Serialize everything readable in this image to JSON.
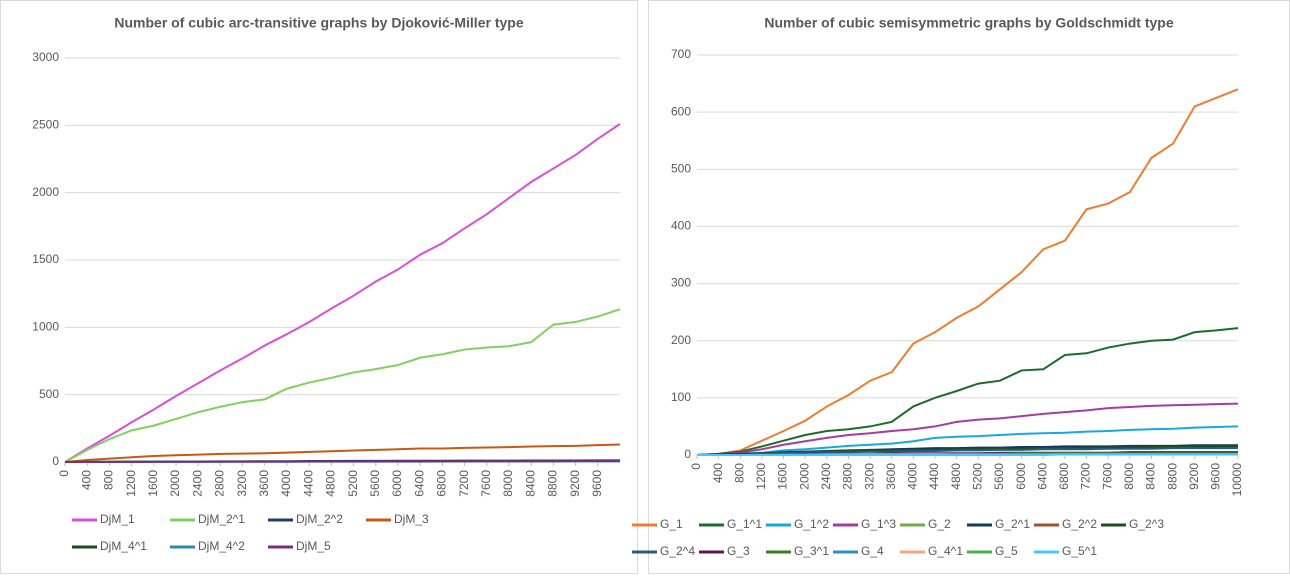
{
  "chart_data": [
    {
      "type": "line",
      "title": "Number of cubic arc-transitive graphs by Djoković-Miller type",
      "x": [
        0,
        400,
        800,
        1200,
        1600,
        2000,
        2400,
        2800,
        3200,
        3600,
        4000,
        4400,
        4800,
        5200,
        5600,
        6000,
        6400,
        6800,
        7200,
        7600,
        8000,
        8400,
        8800,
        9200,
        9600,
        10000
      ],
      "xlim": [
        0,
        10000
      ],
      "xticks": [
        0,
        400,
        800,
        1200,
        1600,
        2000,
        2400,
        2800,
        3200,
        3600,
        4000,
        4400,
        4800,
        5200,
        5600,
        6000,
        6400,
        6800,
        7200,
        7600,
        8000,
        8400,
        8800,
        9200,
        9600
      ],
      "ylim": [
        0,
        3000
      ],
      "yticks": [
        0,
        500,
        1000,
        1500,
        2000,
        2500,
        3000
      ],
      "grid": true,
      "legend": "bottom",
      "series": [
        {
          "name": "DjM_1",
          "color": "#d94fd6",
          "values": [
            0,
            100,
            195,
            295,
            390,
            490,
            585,
            680,
            770,
            865,
            950,
            1040,
            1140,
            1235,
            1340,
            1430,
            1540,
            1625,
            1735,
            1840,
            1960,
            2080,
            2180,
            2280,
            2400,
            2510
          ]
        },
        {
          "name": "DjM_2^1",
          "color": "#7fd15e",
          "values": [
            0,
            90,
            170,
            235,
            270,
            320,
            370,
            410,
            445,
            465,
            545,
            590,
            625,
            665,
            690,
            720,
            775,
            800,
            835,
            850,
            860,
            890,
            1020,
            1040,
            1080,
            1135
          ]
        },
        {
          "name": "DjM_2^2",
          "color": "#1f3d63",
          "values": [
            0,
            1,
            2,
            3,
            3,
            4,
            4,
            5,
            5,
            6,
            6,
            7,
            7,
            8,
            8,
            9,
            9,
            9,
            10,
            10,
            10,
            11,
            11,
            11,
            12,
            12
          ]
        },
        {
          "name": "DjM_3",
          "color": "#c55a11",
          "values": [
            0,
            15,
            25,
            35,
            45,
            50,
            55,
            60,
            62,
            65,
            70,
            75,
            80,
            85,
            90,
            95,
            100,
            100,
            105,
            108,
            110,
            115,
            118,
            120,
            125,
            130
          ]
        },
        {
          "name": "DjM_4^1",
          "color": "#1d4a1d",
          "values": [
            0,
            1,
            1,
            2,
            2,
            3,
            3,
            3,
            4,
            4,
            4,
            5,
            5,
            5,
            5,
            6,
            6,
            6,
            6,
            7,
            7,
            7,
            7,
            8,
            8,
            8
          ]
        },
        {
          "name": "DjM_4^2",
          "color": "#2e8bb0",
          "values": [
            0,
            0,
            1,
            1,
            1,
            1,
            2,
            2,
            2,
            2,
            2,
            3,
            3,
            3,
            3,
            3,
            3,
            4,
            4,
            4,
            4,
            4,
            4,
            5,
            5,
            5
          ]
        },
        {
          "name": "DjM_5",
          "color": "#7b2c81",
          "values": [
            0,
            1,
            1,
            1,
            2,
            2,
            2,
            3,
            3,
            3,
            3,
            4,
            4,
            4,
            4,
            5,
            5,
            5,
            5,
            6,
            6,
            6,
            6,
            7,
            7,
            7
          ]
        }
      ]
    },
    {
      "type": "line",
      "title": "Number of cubic semisymmetric graphs by Goldschmidt type",
      "x": [
        0,
        400,
        800,
        1200,
        1600,
        2000,
        2400,
        2800,
        3200,
        3600,
        4000,
        4400,
        4800,
        5200,
        5600,
        6000,
        6400,
        6800,
        7200,
        7600,
        8000,
        8400,
        8800,
        9200,
        9600,
        10000
      ],
      "xlim": [
        0,
        10000
      ],
      "xticks": [
        0,
        400,
        800,
        1200,
        1600,
        2000,
        2400,
        2800,
        3200,
        3600,
        4000,
        4400,
        4800,
        5200,
        5600,
        6000,
        6400,
        6800,
        7200,
        7600,
        8000,
        8400,
        8800,
        9200,
        9600,
        10000
      ],
      "ylim": [
        0,
        700
      ],
      "yticks": [
        0,
        100,
        200,
        300,
        400,
        500,
        600,
        700
      ],
      "grid": true,
      "legend": "bottom",
      "series": [
        {
          "name": "G_1",
          "color": "#ed7d31",
          "values": [
            0,
            2,
            8,
            25,
            42,
            60,
            85,
            105,
            130,
            145,
            195,
            215,
            240,
            260,
            290,
            320,
            360,
            375,
            430,
            440,
            460,
            520,
            545,
            610,
            625,
            640
          ]
        },
        {
          "name": "G_1^1",
          "color": "#1e6b2b",
          "values": [
            0,
            2,
            6,
            15,
            25,
            35,
            42,
            45,
            50,
            58,
            85,
            100,
            112,
            125,
            130,
            148,
            150,
            175,
            178,
            188,
            195,
            200,
            202,
            215,
            218,
            222
          ]
        },
        {
          "name": "G_1^2",
          "color": "#1aa7e0",
          "values": [
            0,
            0,
            2,
            4,
            8,
            10,
            13,
            16,
            18,
            20,
            24,
            30,
            32,
            33,
            35,
            37,
            38,
            39,
            41,
            42,
            44,
            45,
            46,
            48,
            49,
            50
          ]
        },
        {
          "name": "G_1^3",
          "color": "#a23ea0",
          "values": [
            0,
            1,
            4,
            10,
            18,
            24,
            30,
            35,
            38,
            42,
            45,
            50,
            58,
            62,
            64,
            68,
            72,
            75,
            78,
            82,
            84,
            86,
            87,
            88,
            89,
            90
          ]
        },
        {
          "name": "G_2",
          "color": "#70ad47",
          "values": [
            0,
            0,
            0,
            0,
            0,
            1,
            1,
            1,
            1,
            1,
            1,
            1,
            1,
            1,
            2,
            2,
            2,
            2,
            2,
            2,
            2,
            2,
            2,
            2,
            2,
            2
          ]
        },
        {
          "name": "G_2^1",
          "color": "#0f3b5e",
          "values": [
            0,
            1,
            2,
            3,
            5,
            6,
            7,
            8,
            9,
            10,
            11,
            12,
            12,
            13,
            13,
            14,
            14,
            15,
            15,
            15,
            16,
            16,
            16,
            17,
            17,
            17
          ]
        },
        {
          "name": "G_2^2",
          "color": "#a0522d",
          "values": [
            0,
            0,
            0,
            0,
            0,
            0,
            0,
            0,
            0,
            1,
            1,
            1,
            1,
            1,
            1,
            1,
            1,
            1,
            1,
            1,
            1,
            1,
            1,
            1,
            1,
            1
          ]
        },
        {
          "name": "G_2^3",
          "color": "#1f4e1f",
          "values": [
            0,
            1,
            2,
            3,
            4,
            5,
            6,
            7,
            8,
            8,
            9,
            9,
            10,
            10,
            11,
            11,
            12,
            12,
            13,
            13,
            13,
            14,
            14,
            14,
            15,
            15
          ]
        },
        {
          "name": "G_2^4",
          "color": "#2a5b78",
          "values": [
            0,
            0,
            1,
            2,
            3,
            4,
            5,
            5,
            6,
            6,
            7,
            7,
            8,
            8,
            9,
            9,
            10,
            10,
            10,
            11,
            11,
            11,
            12,
            12,
            12,
            12
          ]
        },
        {
          "name": "G_3",
          "color": "#5b1a4e",
          "values": [
            0,
            0,
            1,
            1,
            1,
            2,
            2,
            2,
            2,
            3,
            3,
            3,
            3,
            3,
            4,
            4,
            4,
            4,
            4,
            4,
            5,
            5,
            5,
            5,
            5,
            5
          ]
        },
        {
          "name": "G_3^1",
          "color": "#3b7d23",
          "values": [
            0,
            0,
            0,
            1,
            1,
            1,
            1,
            1,
            2,
            2,
            2,
            2,
            2,
            2,
            2,
            3,
            3,
            3,
            3,
            3,
            3,
            3,
            3,
            3,
            3,
            3
          ]
        },
        {
          "name": "G_4",
          "color": "#2f8fbf",
          "values": [
            0,
            0,
            0,
            0,
            1,
            1,
            1,
            1,
            1,
            1,
            1,
            2,
            2,
            2,
            2,
            2,
            2,
            2,
            2,
            2,
            2,
            2,
            2,
            2,
            2,
            2
          ]
        },
        {
          "name": "G_4^1",
          "color": "#f4a582",
          "values": [
            0,
            0,
            0,
            0,
            0,
            0,
            1,
            1,
            1,
            1,
            1,
            1,
            1,
            1,
            1,
            1,
            1,
            1,
            1,
            1,
            1,
            1,
            1,
            1,
            1,
            1
          ]
        },
        {
          "name": "G_5",
          "color": "#4caf50",
          "values": [
            0,
            0,
            0,
            0,
            0,
            0,
            0,
            0,
            0,
            0,
            0,
            0,
            1,
            1,
            1,
            1,
            1,
            1,
            1,
            1,
            1,
            1,
            1,
            1,
            1,
            1
          ]
        },
        {
          "name": "G_5^1",
          "color": "#4dc3ff",
          "values": [
            0,
            0,
            0,
            0,
            0,
            0,
            0,
            0,
            0,
            0,
            0,
            0,
            0,
            0,
            0,
            0,
            0,
            1,
            1,
            1,
            1,
            1,
            1,
            1,
            1,
            1
          ]
        }
      ]
    }
  ]
}
